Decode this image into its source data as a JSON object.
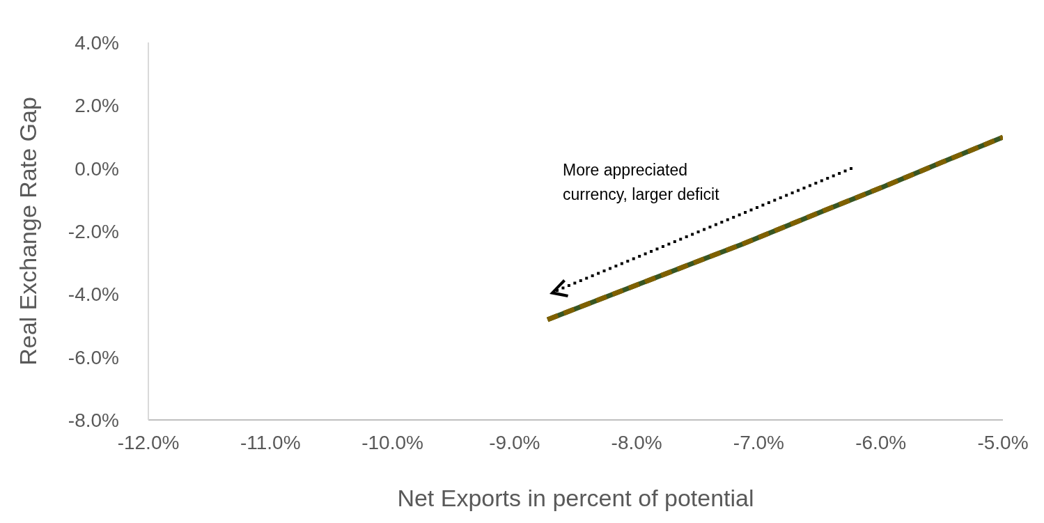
{
  "chart_data": {
    "type": "line",
    "xlabel": "Net Exports in percent of potential",
    "ylabel": "Real Exchange Rate Gap",
    "x": [
      -8.73,
      -8.0,
      -7.14,
      -6.5,
      -5.95,
      -5.5,
      -5.0
    ],
    "series": [
      {
        "color": "#375623",
        "values": [
          -4.81,
          -3.71,
          -2.42,
          -1.4,
          -0.54,
          0.19,
          0.99
        ],
        "line_style": "solid"
      },
      {
        "color": "#7f6000",
        "values": [
          -4.81,
          -3.71,
          -2.42,
          -1.4,
          -0.54,
          0.19,
          0.99
        ],
        "line_style": "dashed"
      }
    ],
    "xlim": [
      -12,
      -5
    ],
    "xticks": [
      {
        "value": -12,
        "label": "-12.0%"
      },
      {
        "value": -11,
        "label": "-11.0%"
      },
      {
        "value": -10,
        "label": "-10.0%"
      },
      {
        "value": -9,
        "label": "-9.0%"
      },
      {
        "value": -8,
        "label": "-8.0%"
      },
      {
        "value": -7,
        "label": "-7.0%"
      },
      {
        "value": -6,
        "label": "-6.0%"
      },
      {
        "value": -5,
        "label": "-5.0%"
      }
    ],
    "ylim": [
      -8,
      4
    ],
    "yticks": [
      {
        "value": -8,
        "label": "-8.0%"
      },
      {
        "value": -6,
        "label": "-6.0%"
      },
      {
        "value": -4,
        "label": "-4.0%"
      },
      {
        "value": -2,
        "label": "-2.0%"
      },
      {
        "value": 0,
        "label": "0.0%"
      },
      {
        "value": 2,
        "label": "2.0%"
      },
      {
        "value": 4,
        "label": "4.0%"
      }
    ],
    "grid": false,
    "marker": "none",
    "annotations": [
      "More appreciated currency, larger deficit"
    ]
  }
}
